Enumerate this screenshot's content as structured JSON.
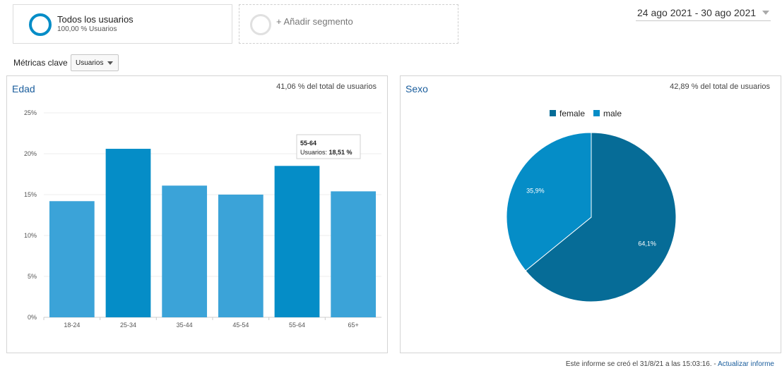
{
  "segments": {
    "active": {
      "name": "Todos los usuarios",
      "subtitle": "100,00 % Usuarios"
    },
    "add_label": "+ Añadir segmento"
  },
  "date_range": "24 ago 2021 - 30 ago 2021",
  "metrics": {
    "label": "Métricas clave",
    "selected": "Usuarios"
  },
  "age_panel": {
    "title": "Edad",
    "pct_of_total": "41,06 % del total de usuarios"
  },
  "gender_panel": {
    "title": "Sexo",
    "pct_of_total": "42,89 % del total de usuarios"
  },
  "tooltip": {
    "category": "55-64",
    "metric_prefix": "Usuarios: ",
    "value_label": "18,51 %"
  },
  "footer": {
    "text": "Este informe se creó el 31/8/21 a las 15:03:16. - ",
    "link": "Actualizar informe"
  },
  "colors": {
    "bar": "#3ba3d8",
    "bar_highlight": "#058dc7",
    "female": "#066c97",
    "male": "#058dc7",
    "link": "#1a5d9c"
  },
  "chart_data": [
    {
      "type": "bar",
      "title": "Edad",
      "categories": [
        "18-24",
        "25-34",
        "35-44",
        "45-54",
        "55-64",
        "65+"
      ],
      "values": [
        14.2,
        20.6,
        16.1,
        15.0,
        18.51,
        15.4
      ],
      "highlight_categories": [
        "25-34",
        "55-64"
      ],
      "y_ticks": [
        "0%",
        "5%",
        "10%",
        "15%",
        "20%",
        "25%"
      ],
      "ylim": [
        0,
        25
      ],
      "grid": true
    },
    {
      "type": "pie",
      "title": "Sexo",
      "labels": [
        "female",
        "male"
      ],
      "values": [
        64.1,
        35.9
      ],
      "value_labels": [
        "64,1%",
        "35,9%"
      ],
      "legend": "top"
    }
  ]
}
